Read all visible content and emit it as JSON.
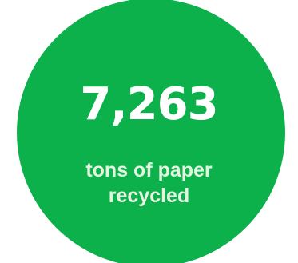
{
  "stat": {
    "value": "7,263",
    "label_line1": "tons of paper",
    "label_line2": "recycled"
  },
  "colors": {
    "circle": "#0db14b",
    "value_text": "#ffffff",
    "label_text": "#e6f3e2",
    "background": "#ffffff"
  }
}
